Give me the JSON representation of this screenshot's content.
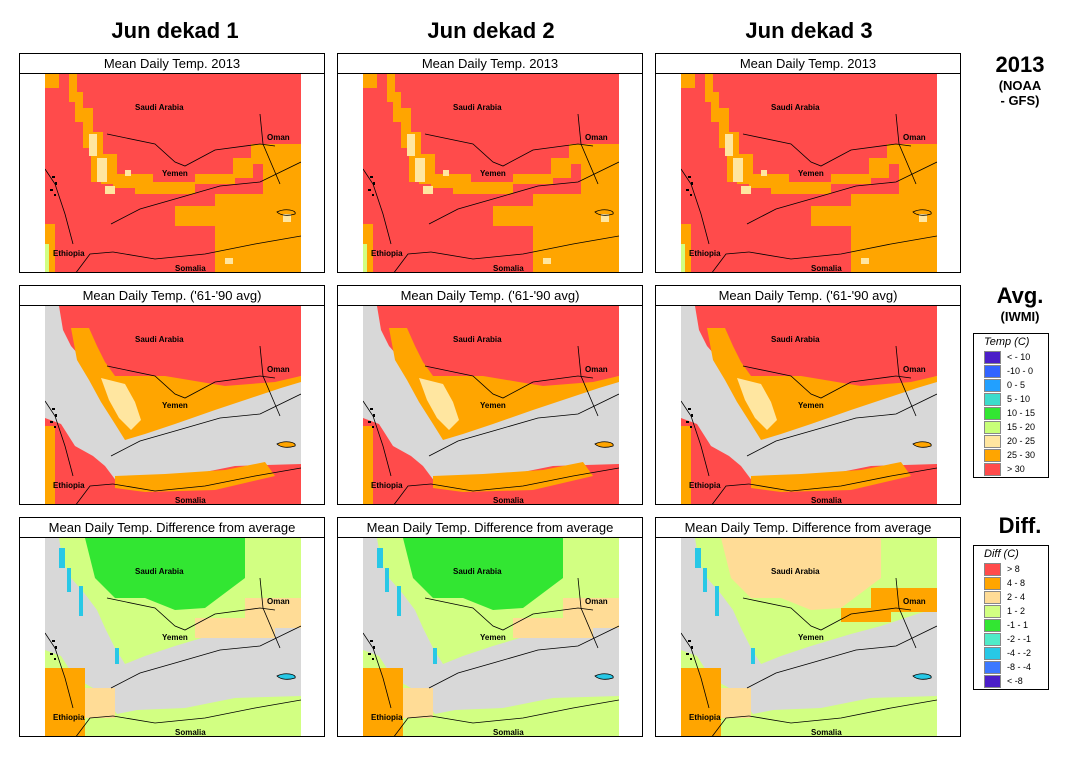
{
  "columns": [
    "Jun dekad 1",
    "Jun dekad 2",
    "Jun dekad 3"
  ],
  "rows": [
    {
      "label_main": "2013",
      "label_sub": "(NOAA\n- GFS)",
      "panel_title": "Mean Daily Temp. 2013"
    },
    {
      "label_main": "Avg.",
      "label_sub": "(IWMI)",
      "panel_title": "Mean Daily Temp. ('61-'90 avg)"
    },
    {
      "label_main": "Diff.",
      "label_sub": "",
      "panel_title": "Mean Daily Temp. Difference from average"
    }
  ],
  "map_labels": {
    "saudi": "Saudi Arabia",
    "oman": "Oman",
    "yemen": "Yemen",
    "ethiopia": "Ethiopia",
    "somalia": "Somalia"
  },
  "temp_legend": {
    "title": "Temp (C)",
    "items": [
      {
        "label": "< - 10",
        "color": "#4b1ec8"
      },
      {
        "label": "-10 -  0",
        "color": "#3264ff"
      },
      {
        "label": "0 -  5",
        "color": "#22a0ff"
      },
      {
        "label": "5 -  10",
        "color": "#3cdccc"
      },
      {
        "label": "10 -  15",
        "color": "#32e632"
      },
      {
        "label": "15 -  20",
        "color": "#c8ff78"
      },
      {
        "label": "20 -  25",
        "color": "#ffe6a0"
      },
      {
        "label": "25 -  30",
        "color": "#ffa500"
      },
      {
        "label": "> 30",
        "color": "#ff4b4b"
      }
    ]
  },
  "diff_legend": {
    "title": "Diff (C)",
    "items": [
      {
        "label": ">  8",
        "color": "#ff4b4b"
      },
      {
        "label": "4 -  8",
        "color": "#ffa500"
      },
      {
        "label": "2 -  4",
        "color": "#ffdc96"
      },
      {
        "label": "1 -  2",
        "color": "#d2ff82"
      },
      {
        "label": "-1 -  1",
        "color": "#32e632"
      },
      {
        "label": "-2 - -1",
        "color": "#50ebc8"
      },
      {
        "label": "-4 - -2",
        "color": "#28c8e6"
      },
      {
        "label": "-8 - -4",
        "color": "#3c78ff"
      },
      {
        "label": "< -8",
        "color": "#4b1ec8"
      }
    ]
  },
  "colors": {
    "sea": "#d8d8d8",
    "hot": "#ff4b4b",
    "warm": "#ffa500",
    "mild": "#ffe6a0",
    "diff_green": "#32e632",
    "diff_light": "#d2ff82",
    "diff_tan": "#ffdc96",
    "diff_cyan": "#28c8e6"
  }
}
